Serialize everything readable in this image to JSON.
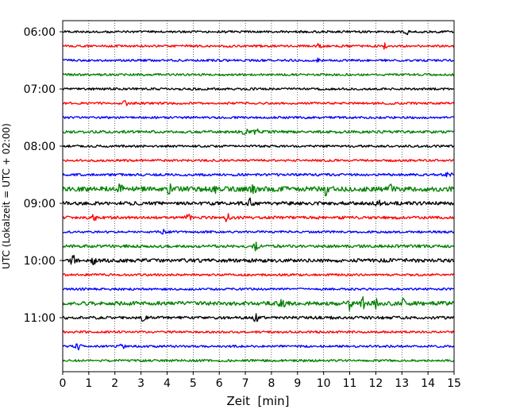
{
  "chart_data": {
    "type": "line",
    "title": "",
    "xlabel": "Zeit  [min]",
    "ylabel": "UTC (Lokalzeit = UTC + 02:00)",
    "xlim": [
      0,
      15
    ],
    "x_ticks": [
      0,
      1,
      2,
      3,
      4,
      5,
      6,
      7,
      8,
      9,
      10,
      11,
      12,
      13,
      14,
      15
    ],
    "y_tick_labels": [
      "06:00",
      "07:00",
      "08:00",
      "09:00",
      "10:00",
      "11:00"
    ],
    "grid": "vertical dotted lines at each minute",
    "trace_interval_minutes": 15,
    "trace_color_cycle": [
      "#000000",
      "#ff0000",
      "#0000ff",
      "#008000"
    ],
    "traces": [
      {
        "start": "06:00",
        "color": "#000000",
        "amplitude": 1.0,
        "events": [
          {
            "x": 13.2,
            "a": 2
          }
        ]
      },
      {
        "start": "06:15",
        "color": "#ff0000",
        "amplitude": 1.0,
        "events": [
          {
            "x": 9.8,
            "a": 2
          },
          {
            "x": 12.3,
            "a": 3
          }
        ]
      },
      {
        "start": "06:30",
        "color": "#0000ff",
        "amplitude": 1.0,
        "events": [
          {
            "x": 9.8,
            "a": 2
          }
        ]
      },
      {
        "start": "06:45",
        "color": "#008000",
        "amplitude": 1.0,
        "events": []
      },
      {
        "start": "07:00",
        "color": "#000000",
        "amplitude": 1.0,
        "events": []
      },
      {
        "start": "07:15",
        "color": "#ff0000",
        "amplitude": 1.0,
        "events": [
          {
            "x": 2.4,
            "a": 2
          }
        ]
      },
      {
        "start": "07:30",
        "color": "#0000ff",
        "amplitude": 1.0,
        "events": []
      },
      {
        "start": "07:45",
        "color": "#008000",
        "amplitude": 1.2,
        "events": [
          {
            "x": 7.0,
            "a": 3
          },
          {
            "x": 7.4,
            "a": 3
          }
        ]
      },
      {
        "start": "08:00",
        "color": "#000000",
        "amplitude": 1.0,
        "events": []
      },
      {
        "start": "08:15",
        "color": "#ff0000",
        "amplitude": 1.0,
        "events": []
      },
      {
        "start": "08:30",
        "color": "#0000ff",
        "amplitude": 1.1,
        "events": [
          {
            "x": 14.8,
            "a": 3
          }
        ]
      },
      {
        "start": "08:45",
        "color": "#008000",
        "amplitude": 2.2,
        "events": [
          {
            "x": 2.2,
            "a": 4
          },
          {
            "x": 4.1,
            "a": 4
          },
          {
            "x": 5.8,
            "a": 3
          },
          {
            "x": 7.3,
            "a": 3
          },
          {
            "x": 10.1,
            "a": 5
          },
          {
            "x": 12.6,
            "a": 3
          }
        ]
      },
      {
        "start": "09:00",
        "color": "#000000",
        "amplitude": 1.6,
        "events": [
          {
            "x": 7.2,
            "a": 4
          },
          {
            "x": 12.1,
            "a": 3
          }
        ]
      },
      {
        "start": "09:15",
        "color": "#ff0000",
        "amplitude": 1.3,
        "events": [
          {
            "x": 1.2,
            "a": 3
          },
          {
            "x": 4.8,
            "a": 3
          },
          {
            "x": 6.3,
            "a": 4
          }
        ]
      },
      {
        "start": "09:30",
        "color": "#0000ff",
        "amplitude": 1.0,
        "events": [
          {
            "x": 3.9,
            "a": 10
          }
        ]
      },
      {
        "start": "09:45",
        "color": "#008000",
        "amplitude": 1.3,
        "events": [
          {
            "x": 7.4,
            "a": 4
          }
        ]
      },
      {
        "start": "10:00",
        "color": "#000000",
        "amplitude": 1.6,
        "events": [
          {
            "x": 0.4,
            "a": 4
          },
          {
            "x": 1.2,
            "a": 3
          }
        ]
      },
      {
        "start": "10:15",
        "color": "#ff0000",
        "amplitude": 1.0,
        "events": []
      },
      {
        "start": "10:30",
        "color": "#0000ff",
        "amplitude": 1.0,
        "events": []
      },
      {
        "start": "10:45",
        "color": "#008000",
        "amplitude": 1.8,
        "events": [
          {
            "x": 8.4,
            "a": 4
          },
          {
            "x": 11.0,
            "a": 5
          },
          {
            "x": 11.5,
            "a": 5
          },
          {
            "x": 12.0,
            "a": 4
          },
          {
            "x": 13.0,
            "a": 4
          }
        ]
      },
      {
        "start": "11:00",
        "color": "#000000",
        "amplitude": 1.3,
        "events": [
          {
            "x": 3.1,
            "a": 3
          },
          {
            "x": 7.4,
            "a": 3
          }
        ]
      },
      {
        "start": "11:15",
        "color": "#ff0000",
        "amplitude": 1.0,
        "events": []
      },
      {
        "start": "11:30",
        "color": "#0000ff",
        "amplitude": 1.0,
        "events": [
          {
            "x": 0.6,
            "a": 3
          },
          {
            "x": 2.3,
            "a": 2
          }
        ]
      },
      {
        "start": "11:45",
        "color": "#008000",
        "amplitude": 1.0,
        "events": []
      }
    ]
  }
}
